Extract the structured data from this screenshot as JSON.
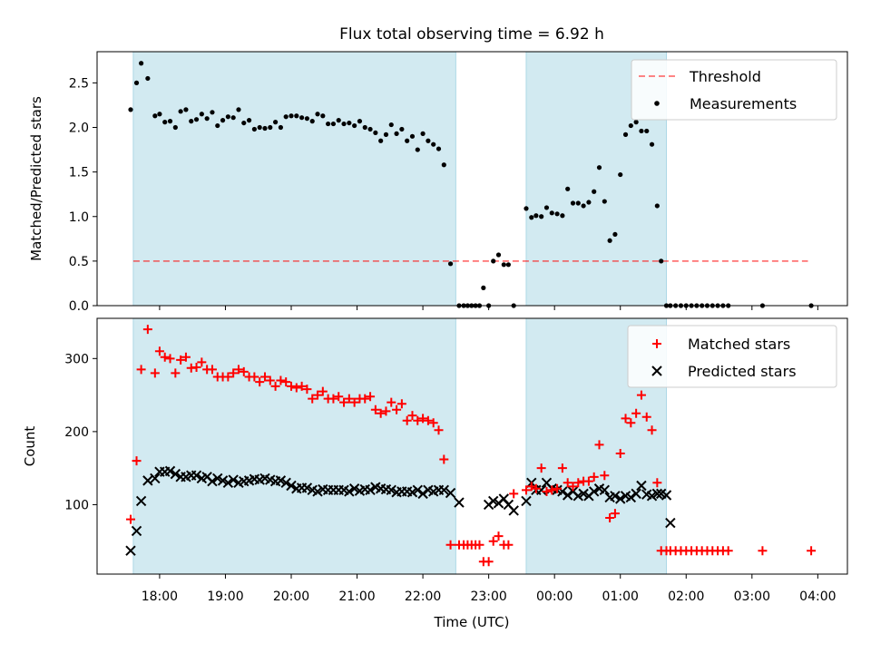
{
  "title": "Flux total observing time = 6.92 h",
  "colors": {
    "shade": "#add8e6",
    "threshold": "#ff0000",
    "measurement": "#000000",
    "matched": "#ff0000",
    "predicted": "#000000"
  },
  "chart_data": [
    {
      "type": "scatter",
      "panel": "top",
      "title": "Flux total observing time = 6.92 h",
      "xlabel": "",
      "ylabel": "Matched/Predicted stars",
      "xlim": [
        17.05,
        28.45
      ],
      "ylim": [
        0,
        2.85
      ],
      "yticks": [
        0.0,
        0.5,
        1.0,
        1.5,
        2.0,
        2.5
      ],
      "ytick_labels": [
        "0.0",
        "0.5",
        "1.0",
        "1.5",
        "2.0",
        "2.5"
      ],
      "legend_position": "top-right",
      "legend": [
        "Threshold",
        "Measurements"
      ],
      "shaded_spans": [
        [
          17.6,
          22.5
        ],
        [
          23.57,
          25.7
        ]
      ],
      "threshold": {
        "name": "Threshold",
        "y": 0.5,
        "x_range": [
          17.6,
          27.85
        ]
      },
      "series": [
        {
          "name": "Measurements",
          "x": [
            17.56,
            17.65,
            17.72,
            17.82,
            17.93,
            18.0,
            18.08,
            18.16,
            18.24,
            18.32,
            18.4,
            18.48,
            18.56,
            18.64,
            18.72,
            18.8,
            18.88,
            18.96,
            19.04,
            19.12,
            19.2,
            19.28,
            19.36,
            19.44,
            19.52,
            19.6,
            19.68,
            19.76,
            19.84,
            19.92,
            20.0,
            20.08,
            20.16,
            20.24,
            20.32,
            20.4,
            20.48,
            20.56,
            20.64,
            20.72,
            20.8,
            20.88,
            20.96,
            21.04,
            21.12,
            21.2,
            21.28,
            21.36,
            21.44,
            21.52,
            21.6,
            21.68,
            21.76,
            21.84,
            21.92,
            22.0,
            22.08,
            22.16,
            22.24,
            22.32,
            22.42,
            22.55,
            22.62,
            22.68,
            22.74,
            22.8,
            22.86,
            22.92,
            23.0,
            23.07,
            23.15,
            23.23,
            23.3,
            23.38,
            23.57,
            23.65,
            23.72,
            23.8,
            23.88,
            23.96,
            24.04,
            24.12,
            24.2,
            24.28,
            24.36,
            24.44,
            24.52,
            24.6,
            24.68,
            24.76,
            24.84,
            24.92,
            25.0,
            25.08,
            25.16,
            25.24,
            25.32,
            25.4,
            25.48,
            25.56,
            25.62,
            25.7,
            25.76,
            25.84,
            25.92,
            26.0,
            26.08,
            26.16,
            26.24,
            26.32,
            26.4,
            26.48,
            26.56,
            26.64,
            27.16,
            27.9
          ],
          "y": [
            2.2,
            2.5,
            2.72,
            2.55,
            2.13,
            2.15,
            2.06,
            2.07,
            2.0,
            2.18,
            2.2,
            2.07,
            2.09,
            2.15,
            2.1,
            2.17,
            2.02,
            2.08,
            2.12,
            2.11,
            2.2,
            2.05,
            2.08,
            1.98,
            2.0,
            1.99,
            2.0,
            2.06,
            2.0,
            2.12,
            2.13,
            2.13,
            2.11,
            2.1,
            2.07,
            2.15,
            2.13,
            2.04,
            2.04,
            2.08,
            2.04,
            2.05,
            2.02,
            2.07,
            2.0,
            1.98,
            1.94,
            1.85,
            1.92,
            2.03,
            1.93,
            1.98,
            1.85,
            1.9,
            1.75,
            1.93,
            1.85,
            1.81,
            1.76,
            1.58,
            0.47,
            0.0,
            0.0,
            0.0,
            0.0,
            0.0,
            0.0,
            0.2,
            0.0,
            0.5,
            0.57,
            0.46,
            0.46,
            0.0,
            1.09,
            0.99,
            1.01,
            1.0,
            1.1,
            1.04,
            1.03,
            1.01,
            1.31,
            1.15,
            1.15,
            1.12,
            1.16,
            1.28,
            1.55,
            1.17,
            0.73,
            0.8,
            1.47,
            1.92,
            2.02,
            2.06,
            1.96,
            1.96,
            1.81,
            1.12,
            0.5,
            0.0,
            0.0,
            0.0,
            0.0,
            0.0,
            0.0,
            0.0,
            0.0,
            0.0,
            0.0,
            0.0,
            0.0,
            0.0,
            0.0,
            0.0
          ]
        }
      ]
    },
    {
      "type": "scatter",
      "panel": "bottom",
      "xlabel": "Time (UTC)",
      "ylabel": "Count",
      "xlim": [
        17.05,
        28.45
      ],
      "ylim": [
        5,
        355
      ],
      "yticks": [
        100,
        200,
        300
      ],
      "ytick_labels": [
        "100",
        "200",
        "300"
      ],
      "xticks": [
        18,
        19,
        20,
        21,
        22,
        23,
        24,
        25,
        26,
        27,
        28
      ],
      "xtick_labels": [
        "18:00",
        "19:00",
        "20:00",
        "21:00",
        "22:00",
        "23:00",
        "00:00",
        "01:00",
        "02:00",
        "03:00",
        "04:00"
      ],
      "legend_position": "top-right",
      "legend": [
        "Matched stars",
        "Predicted stars"
      ],
      "shaded_spans": [
        [
          17.6,
          22.5
        ],
        [
          23.57,
          25.7
        ]
      ],
      "series": [
        {
          "name": "Matched stars",
          "marker": "+",
          "x": [
            17.56,
            17.65,
            17.72,
            17.82,
            17.93,
            18.0,
            18.08,
            18.16,
            18.24,
            18.32,
            18.4,
            18.48,
            18.56,
            18.64,
            18.72,
            18.8,
            18.88,
            18.96,
            19.04,
            19.12,
            19.2,
            19.28,
            19.36,
            19.44,
            19.52,
            19.6,
            19.68,
            19.76,
            19.84,
            19.92,
            20.0,
            20.08,
            20.16,
            20.24,
            20.32,
            20.4,
            20.48,
            20.56,
            20.64,
            20.72,
            20.8,
            20.88,
            20.96,
            21.04,
            21.12,
            21.2,
            21.28,
            21.36,
            21.44,
            21.52,
            21.6,
            21.68,
            21.76,
            21.84,
            21.92,
            22.0,
            22.08,
            22.16,
            22.24,
            22.32,
            22.42,
            22.55,
            22.62,
            22.68,
            22.74,
            22.8,
            22.86,
            22.92,
            23.0,
            23.07,
            23.15,
            23.23,
            23.3,
            23.38,
            23.57,
            23.65,
            23.72,
            23.8,
            23.88,
            23.96,
            24.04,
            24.12,
            24.2,
            24.28,
            24.36,
            24.44,
            24.52,
            24.6,
            24.68,
            24.76,
            24.84,
            24.92,
            25.0,
            25.08,
            25.16,
            25.24,
            25.32,
            25.4,
            25.48,
            25.56,
            25.62,
            25.7,
            25.76,
            25.84,
            25.92,
            26.0,
            26.08,
            26.16,
            26.24,
            26.32,
            26.4,
            26.48,
            26.56,
            26.64,
            27.16,
            27.9
          ],
          "y": [
            80,
            160,
            285,
            340,
            280,
            310,
            302,
            300,
            280,
            298,
            302,
            287,
            288,
            295,
            285,
            285,
            275,
            275,
            275,
            280,
            285,
            282,
            275,
            275,
            268,
            275,
            270,
            262,
            270,
            268,
            262,
            260,
            262,
            258,
            245,
            250,
            255,
            245,
            245,
            248,
            240,
            245,
            240,
            245,
            245,
            248,
            230,
            225,
            228,
            240,
            230,
            238,
            215,
            222,
            215,
            218,
            215,
            212,
            202,
            162,
            45,
            45,
            45,
            45,
            45,
            45,
            45,
            22,
            22,
            50,
            57,
            45,
            45,
            115,
            120,
            125,
            122,
            150,
            118,
            120,
            122,
            150,
            130,
            125,
            130,
            132,
            132,
            138,
            182,
            140,
            82,
            88,
            170,
            218,
            212,
            225,
            250,
            220,
            202,
            130,
            37,
            37,
            37,
            37,
            37,
            37,
            37,
            37,
            37,
            37,
            37,
            37,
            37,
            37,
            37,
            37
          ]
        },
        {
          "name": "Predicted stars",
          "marker": "x",
          "x": [
            17.56,
            17.65,
            17.72,
            17.82,
            17.93,
            18.0,
            18.08,
            18.16,
            18.24,
            18.32,
            18.4,
            18.48,
            18.56,
            18.64,
            18.72,
            18.8,
            18.88,
            18.96,
            19.04,
            19.12,
            19.2,
            19.28,
            19.36,
            19.44,
            19.52,
            19.6,
            19.68,
            19.76,
            19.84,
            19.92,
            20.0,
            20.08,
            20.16,
            20.24,
            20.32,
            20.4,
            20.48,
            20.56,
            20.64,
            20.72,
            20.8,
            20.88,
            20.96,
            21.04,
            21.12,
            21.2,
            21.28,
            21.36,
            21.44,
            21.52,
            21.6,
            21.68,
            21.76,
            21.84,
            21.92,
            22.0,
            22.08,
            22.16,
            22.24,
            22.32,
            22.42,
            22.55,
            23.0,
            23.07,
            23.15,
            23.23,
            23.3,
            23.38,
            23.57,
            23.65,
            23.72,
            23.8,
            23.88,
            23.96,
            24.04,
            24.12,
            24.2,
            24.28,
            24.36,
            24.44,
            24.52,
            24.6,
            24.68,
            24.76,
            24.84,
            24.92,
            25.0,
            25.08,
            25.16,
            25.24,
            25.32,
            25.4,
            25.48,
            25.56,
            25.62,
            25.7,
            25.76
          ],
          "y": [
            37,
            64,
            105,
            133,
            136,
            145,
            145,
            146,
            142,
            138,
            138,
            140,
            140,
            136,
            138,
            132,
            136,
            133,
            130,
            134,
            130,
            132,
            133,
            135,
            134,
            136,
            134,
            132,
            133,
            130,
            126,
            122,
            123,
            123,
            120,
            118,
            121,
            120,
            120,
            120,
            120,
            118,
            122,
            119,
            121,
            120,
            124,
            122,
            121,
            120,
            117,
            118,
            118,
            117,
            120,
            115,
            120,
            118,
            120,
            120,
            116,
            103,
            100,
            105,
            102,
            108,
            100,
            92,
            105,
            130,
            120,
            120,
            130,
            122,
            120,
            118,
            113,
            118,
            112,
            115,
            112,
            118,
            122,
            120,
            110,
            112,
            108,
            112,
            110,
            115,
            126,
            114,
            112,
            115,
            115,
            113,
            75
          ]
        }
      ]
    }
  ]
}
